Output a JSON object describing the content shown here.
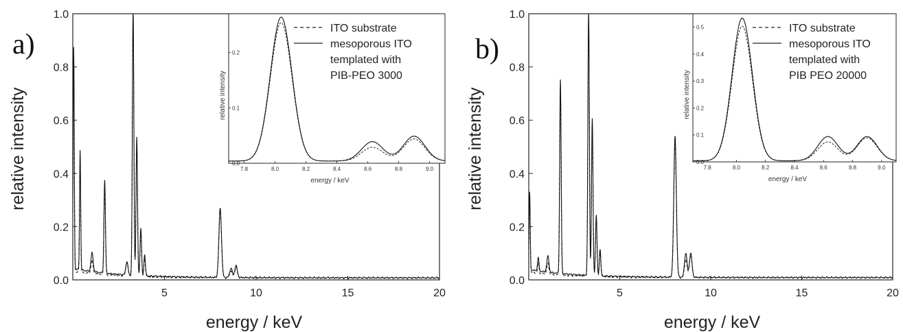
{
  "chart_data": [
    {
      "type": "line",
      "panel_label": "a)",
      "xlabel": "energy / keV",
      "ylabel": "relative intensity",
      "xlim": [
        0,
        20
      ],
      "ylim": [
        0,
        1.0
      ],
      "x_ticks": [
        "5",
        "10",
        "15",
        "20"
      ],
      "y_ticks": [
        "0.0",
        "0.2",
        "0.4",
        "0.6",
        "0.8",
        "1.0"
      ],
      "legend": [
        "ITO substrate",
        "mesoporous ITO",
        "templated with",
        "PIB-PEO 3000"
      ],
      "series": [
        {
          "name": "ITO substrate",
          "style": "dashed",
          "peaks": [
            [
              0.05,
              0.8,
              0.03
            ],
            [
              0.4,
              0.42,
              0.03
            ],
            [
              1.05,
              0.05,
              0.06
            ],
            [
              1.74,
              0.33,
              0.04
            ],
            [
              2.95,
              0.05,
              0.06
            ],
            [
              3.29,
              0.99,
              0.04
            ],
            [
              3.49,
              0.5,
              0.04
            ],
            [
              3.71,
              0.17,
              0.04
            ],
            [
              3.92,
              0.07,
              0.04
            ],
            [
              8.04,
              0.25,
              0.07
            ],
            [
              8.63,
              0.025,
              0.07
            ],
            [
              8.9,
              0.04,
              0.07
            ]
          ],
          "background": [
            0.025,
            0.007
          ]
        },
        {
          "name": "mesoporous ITO templated with PIB-PEO 3000",
          "style": "solid",
          "peaks": [
            [
              0.05,
              0.83,
              0.03
            ],
            [
              0.4,
              0.45,
              0.03
            ],
            [
              1.05,
              0.07,
              0.06
            ],
            [
              1.74,
              0.35,
              0.04
            ],
            [
              2.95,
              0.05,
              0.06
            ],
            [
              3.29,
              1.0,
              0.04
            ],
            [
              3.49,
              0.52,
              0.04
            ],
            [
              3.71,
              0.18,
              0.04
            ],
            [
              3.92,
              0.08,
              0.04
            ],
            [
              8.04,
              0.26,
              0.07
            ],
            [
              8.63,
              0.035,
              0.07
            ],
            [
              8.9,
              0.045,
              0.07
            ]
          ],
          "background": [
            0.035,
            0.008
          ]
        }
      ],
      "inset": {
        "xlabel": "energy / keV",
        "ylabel": "relative intensity",
        "xlim": [
          7.7,
          9.1
        ],
        "ylim": [
          0,
          0.27
        ],
        "x_ticks": [
          "7.8",
          "8.0",
          "8.2",
          "8.4",
          "8.6",
          "8.8",
          "9.0"
        ],
        "y_ticks": [
          "0.0",
          "0.1",
          "0.2"
        ]
      }
    },
    {
      "type": "line",
      "panel_label": "b)",
      "xlabel": "energy / keV",
      "ylabel": "relative intensity",
      "xlim": [
        0,
        20
      ],
      "ylim": [
        0,
        1.0
      ],
      "x_ticks": [
        "5",
        "10",
        "15",
        "20"
      ],
      "y_ticks": [
        "0.0",
        "0.2",
        "0.4",
        "0.6",
        "0.8",
        "1.0"
      ],
      "legend": [
        "ITO substrate",
        "mesoporous ITO",
        "templated with",
        "PIB PEO 20000"
      ],
      "series": [
        {
          "name": "ITO substrate",
          "style": "dashed",
          "peaks": [
            [
              0.05,
              0.28,
              0.03
            ],
            [
              0.52,
              0.04,
              0.04
            ],
            [
              1.05,
              0.04,
              0.06
            ],
            [
              1.74,
              0.7,
              0.04
            ],
            [
              3.29,
              0.99,
              0.04
            ],
            [
              3.49,
              0.57,
              0.04
            ],
            [
              3.71,
              0.22,
              0.04
            ],
            [
              3.92,
              0.09,
              0.04
            ],
            [
              8.04,
              0.5,
              0.07
            ],
            [
              8.63,
              0.07,
              0.07
            ],
            [
              8.9,
              0.085,
              0.07
            ]
          ],
          "background": [
            0.02,
            0.008
          ]
        },
        {
          "name": "mesoporous ITO templated with PIB PEO 20000",
          "style": "solid",
          "peaks": [
            [
              0.05,
              0.29,
              0.03
            ],
            [
              0.52,
              0.05,
              0.04
            ],
            [
              1.05,
              0.06,
              0.06
            ],
            [
              1.74,
              0.73,
              0.04
            ],
            [
              3.29,
              1.0,
              0.04
            ],
            [
              3.49,
              0.59,
              0.04
            ],
            [
              3.71,
              0.23,
              0.04
            ],
            [
              3.92,
              0.1,
              0.04
            ],
            [
              8.04,
              0.53,
              0.07
            ],
            [
              8.63,
              0.09,
              0.07
            ],
            [
              8.9,
              0.09,
              0.07
            ]
          ],
          "background": [
            0.03,
            0.009
          ]
        }
      ],
      "inset": {
        "xlabel": "energy / keV",
        "ylabel": "relative intensity",
        "xlim": [
          7.7,
          9.1
        ],
        "ylim": [
          0,
          0.55
        ],
        "x_ticks": [
          "7.8",
          "8.0",
          "8.2",
          "8.4",
          "8.6",
          "8.8",
          "9.0"
        ],
        "y_ticks": [
          "0.0",
          "0.1",
          "0.2",
          "0.3",
          "0.4",
          "0.5"
        ]
      }
    }
  ]
}
